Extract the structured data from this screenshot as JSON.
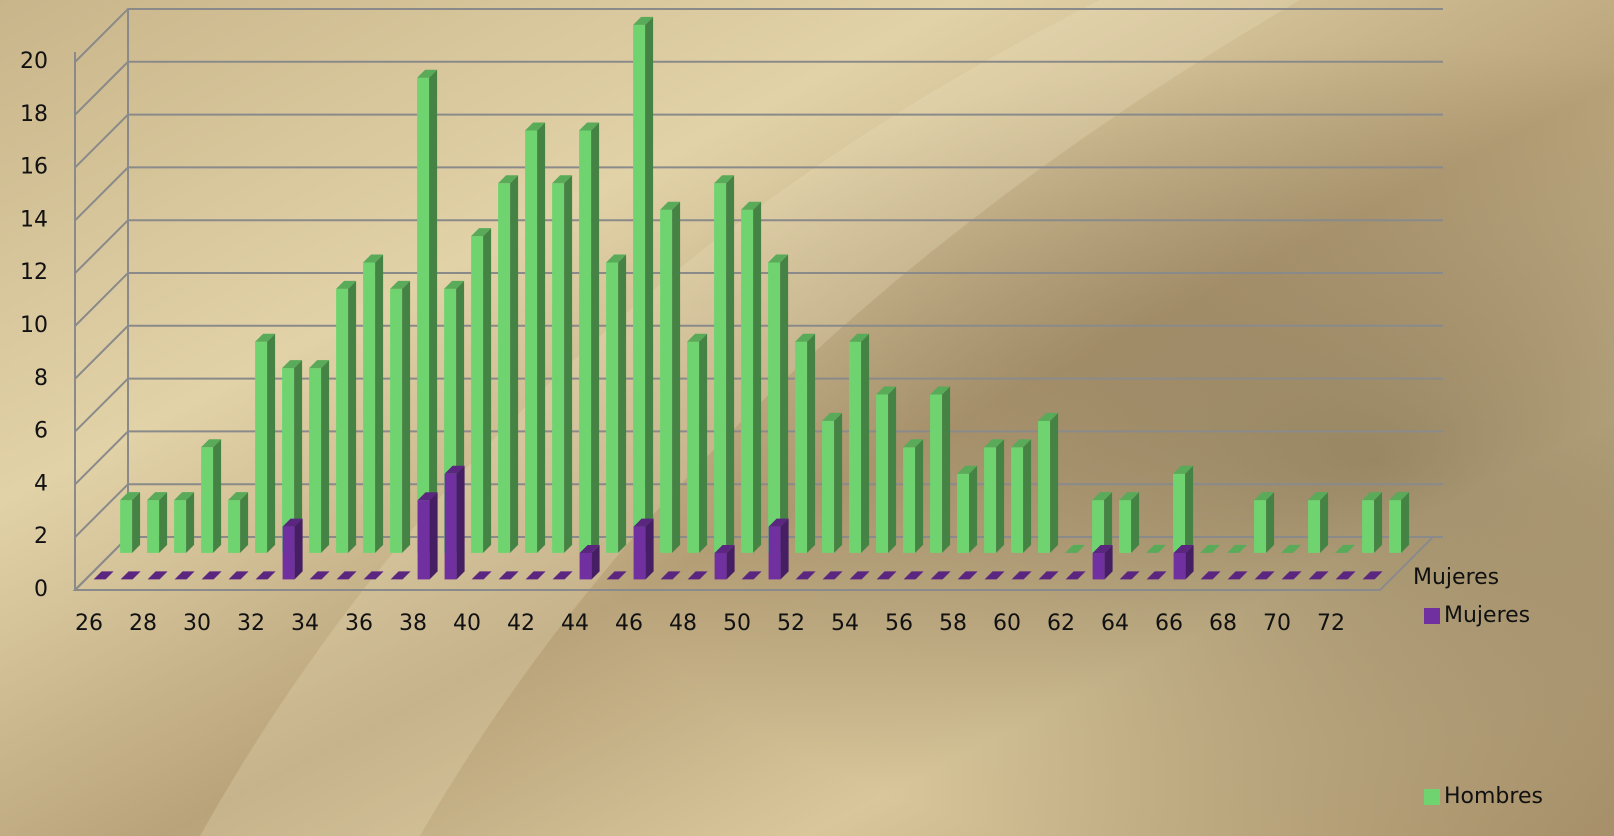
{
  "chart_data": {
    "type": "bar3d",
    "categories": [
      26,
      null,
      28,
      null,
      30,
      null,
      32,
      null,
      34,
      null,
      36,
      null,
      38,
      null,
      40,
      null,
      42,
      null,
      44,
      null,
      46,
      null,
      48,
      null,
      50,
      null,
      52,
      null,
      54,
      null,
      56,
      null,
      58,
      null,
      60,
      null,
      62,
      null,
      64,
      null,
      66,
      null,
      68,
      null,
      70,
      null,
      72,
      null
    ],
    "depth_labels": [
      "Mujeres"
    ],
    "series": [
      {
        "name": "Mujeres",
        "color": "#7030a0",
        "values": [
          0,
          0,
          0,
          0,
          0,
          0,
          0,
          2,
          0,
          0,
          0,
          0,
          3,
          4,
          0,
          0,
          0,
          0,
          1,
          0,
          2,
          0,
          0,
          1,
          0,
          2,
          0,
          0,
          0,
          0,
          0,
          0,
          0,
          0,
          0,
          0,
          0,
          1,
          0,
          0,
          1,
          0,
          0,
          0,
          0,
          0,
          0,
          0
        ]
      },
      {
        "name": "Hombres",
        "color": "#6fd46f",
        "values": [
          2,
          2,
          2,
          4,
          2,
          8,
          7,
          7,
          10,
          11,
          10,
          18,
          10,
          12,
          14,
          16,
          14,
          16,
          11,
          20,
          13,
          8,
          14,
          13,
          11,
          8,
          5,
          8,
          6,
          4,
          6,
          3,
          4,
          4,
          5,
          0,
          2,
          2,
          0,
          3,
          0,
          0,
          2,
          0,
          2,
          0,
          2,
          2
        ]
      }
    ],
    "ylim": [
      0,
      20
    ],
    "yticks": [
      0,
      2,
      4,
      6,
      8,
      10,
      12,
      14,
      16,
      18,
      20
    ],
    "grid": true
  }
}
